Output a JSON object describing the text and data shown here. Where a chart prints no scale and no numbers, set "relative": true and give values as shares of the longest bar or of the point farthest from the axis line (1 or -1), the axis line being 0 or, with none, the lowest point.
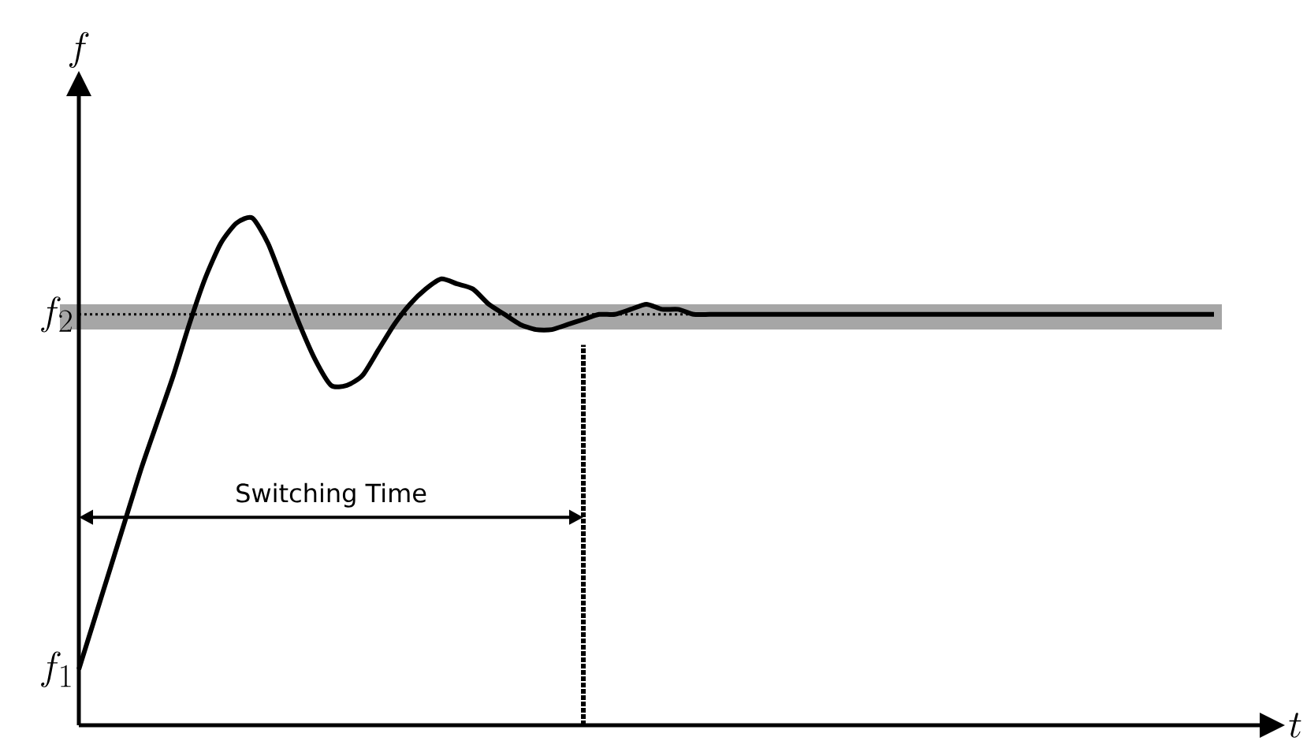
{
  "chart_data": {
    "type": "line",
    "xlabel": "t",
    "relative": true,
    "categories": [
      null,
      null,
      null,
      null,
      null,
      null,
      null,
      null,
      null,
      null,
      null,
      null,
      null,
      null,
      null,
      null,
      null,
      null,
      null,
      null,
      null,
      null,
      null,
      null,
      null,
      null,
      null,
      null,
      null,
      null,
      null,
      null,
      null,
      null,
      null,
      null,
      null,
      null,
      null,
      null,
      null,
      null,
      null,
      null,
      null,
      null,
      null,
      null,
      null,
      null,
      null,
      null,
      null,
      null,
      null,
      null,
      null,
      null,
      null,
      null,
      null,
      null,
      null,
      null,
      null,
      null,
      null,
      null,
      null,
      null,
      null,
      null,
      null
    ],
    "series": [
      {
        "color": "#000000",
        "values": [
          0.11,
          0.21,
          0.31,
          0.41,
          0.51,
          0.6,
          0.69,
          0.79,
          0.88,
          0.95,
          0.99,
          1.0,
          0.95,
          0.87,
          0.79,
          0.72,
          0.67,
          0.67,
          0.69,
          0.74,
          0.79,
          0.83,
          0.86,
          0.88,
          0.87,
          0.86,
          0.83,
          0.81,
          0.79,
          0.78,
          0.78,
          0.79,
          0.8,
          0.81,
          0.81,
          0.82,
          0.83,
          0.82,
          0.82,
          0.81,
          0.81,
          0.81,
          0.81,
          0.81,
          0.81,
          0.81,
          0.81,
          0.81,
          0.81,
          0.81,
          0.81,
          0.81,
          0.81,
          0.81,
          0.81,
          0.81,
          0.81,
          0.81,
          0.81,
          0.81,
          0.81,
          0.81,
          0.81,
          0.81,
          0.81,
          0.81,
          0.81,
          0.81,
          0.81,
          0.81,
          0.81,
          0.81,
          0.81
        ]
      }
    ],
    "bands": [
      {
        "axis": "y",
        "from": 0.78,
        "to": 0.83,
        "color": "#a6a6a6"
      }
    ],
    "ref_lines": [
      {
        "axis": "y",
        "value": 0.81,
        "line_style": "dotted",
        "color": "#000000"
      }
    ],
    "annotations": [
      "Switching Time",
      "f_1",
      "f_2",
      "f"
    ],
    "marker": "none",
    "line_style": "solid"
  }
}
